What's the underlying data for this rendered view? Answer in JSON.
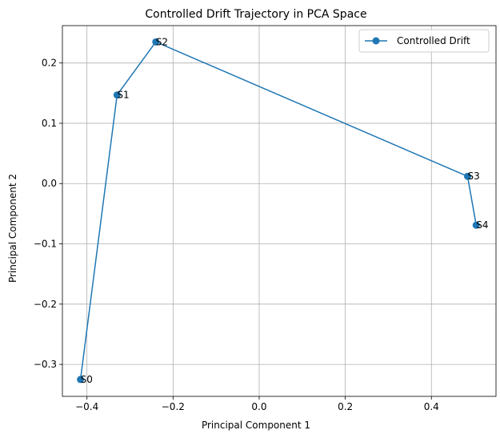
{
  "chart_data": {
    "type": "line",
    "title": "Controlled Drift Trajectory in PCA Space",
    "xlabel": "Principal Component 1",
    "ylabel": "Principal Component 2",
    "xlim": [
      -0.457,
      0.55
    ],
    "ylim": [
      -0.353,
      0.262
    ],
    "xticks": [
      -0.4,
      -0.2,
      0.0,
      0.2,
      0.4
    ],
    "xtick_labels": [
      "−0.4",
      "−0.2",
      "0.0",
      "0.2",
      "0.4"
    ],
    "yticks": [
      -0.3,
      -0.2,
      -0.1,
      0.0,
      0.1,
      0.2
    ],
    "ytick_labels": [
      "−0.3",
      "−0.2",
      "−0.1",
      "0.0",
      "0.1",
      "0.2"
    ],
    "grid": true,
    "legend_position": "top-right",
    "series": [
      {
        "name": "Controlled Drift",
        "color": "#1f77b4",
        "marker": "circle",
        "x": [
          -0.415,
          -0.33,
          -0.24,
          0.484,
          0.504
        ],
        "y": [
          -0.325,
          0.147,
          0.235,
          0.012,
          -0.069
        ],
        "point_labels": [
          "S0",
          "S1",
          "S2",
          "S3",
          "S4"
        ]
      }
    ]
  }
}
